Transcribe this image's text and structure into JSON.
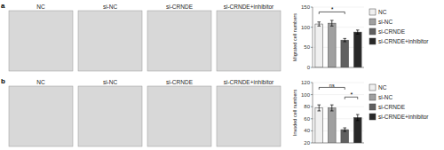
{
  "chart_data": [
    {
      "type": "image",
      "title": "NC",
      "color": "#d8d8d8",
      "annotations": [
        {
          "text": "a"
        }
      ]
    },
    {
      "type": "image",
      "title": "si-NC",
      "color": "#d8d8d8"
    },
    {
      "type": "image",
      "title": "si-CRNDE",
      "color": "#d8d8d8"
    },
    {
      "type": "image",
      "title": "si-CRNDE+inhibitor",
      "color": "#d8d8d8"
    },
    {
      "type": "bar",
      "y_label": "Migrated cell numbers",
      "categories": [
        "NC",
        "si-NC",
        "si-CRNDE",
        "si-CRNDE+inhibitor"
      ],
      "values": [
        108,
        110,
        68,
        88
      ],
      "errors": [
        5,
        7,
        4,
        5
      ],
      "colors": [
        "#f0f0f0",
        "#a0a0a0",
        "#606060",
        "#282828"
      ],
      "ylim": [
        0,
        150
      ],
      "yticks": [
        0,
        50,
        100,
        150
      ],
      "tick_labels": "y",
      "legend": "right",
      "annotations": [
        {
          "text": "*",
          "x1": "NC",
          "x2": "si-CRNDE",
          "y": 138
        }
      ]
    },
    {
      "type": "image",
      "title": "NC",
      "color": "#d8d8d8",
      "annotations": [
        {
          "text": "b"
        }
      ]
    },
    {
      "type": "image",
      "title": "si-NC",
      "color": "#d8d8d8"
    },
    {
      "type": "image",
      "title": "si-CRNDE",
      "color": "#d8d8d8"
    },
    {
      "type": "image",
      "title": "si-CRNDE+inhibitor",
      "color": "#d8d8d8"
    },
    {
      "type": "bar",
      "y_label": "Invaded cell numbers",
      "categories": [
        "NC",
        "si-NC",
        "si-CRNDE",
        "si-CRNDE+inhibitor"
      ],
      "values": [
        78,
        78,
        42,
        62
      ],
      "errors": [
        5,
        5,
        3,
        5
      ],
      "colors": [
        "#f0f0f0",
        "#a0a0a0",
        "#606060",
        "#282828"
      ],
      "ylim": [
        20,
        120
      ],
      "yticks": [
        20,
        40,
        60,
        80,
        100,
        120
      ],
      "tick_labels": "y",
      "legend": "right",
      "annotations": [
        {
          "text": "ns",
          "x1": "NC",
          "x2": "si-CRNDE",
          "y": 112
        },
        {
          "text": "*",
          "x1": "si-CRNDE",
          "x2": "si-CRNDE+inhibitor",
          "y": 96
        }
      ]
    }
  ]
}
